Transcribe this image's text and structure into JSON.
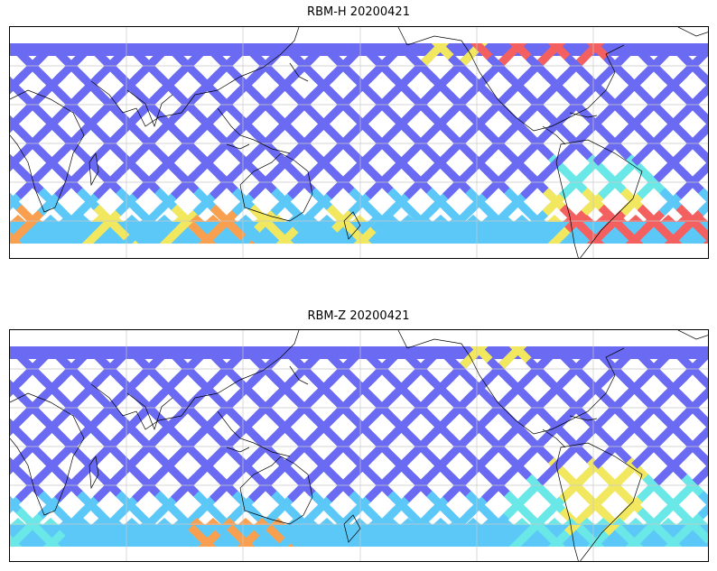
{
  "panels": [
    {
      "title": "RBM-H 20200421",
      "variant": "H"
    },
    {
      "title": "RBM-Z 20200421",
      "variant": "Z"
    }
  ],
  "colors": {
    "blue": "#6a6af2",
    "light_blue": "#5cc8f8",
    "cyan": "#6ae8e8",
    "yellow": "#f2e860",
    "orange": "#f8a050",
    "red": "#f46060",
    "coast": "#000000",
    "grid": "#c8c8c8"
  }
}
